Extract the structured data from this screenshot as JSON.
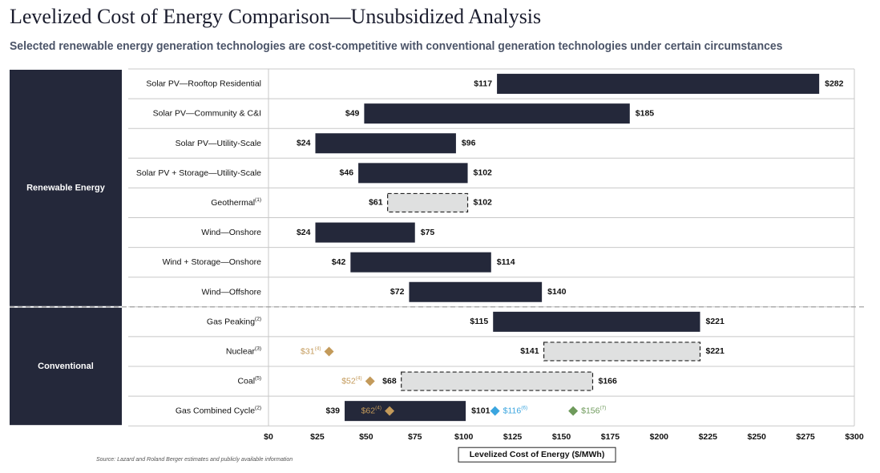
{
  "title": "Levelized Cost of Energy Comparison—Unsubsidized Analysis",
  "subtitle": "Selected renewable energy generation technologies are cost-competitive with conventional generation technologies under certain circumstances",
  "source_note": "Source:    Lazard and Roland Berger estimates and publicly available information",
  "colors": {
    "bar_dark": "#24283a",
    "bar_light": "#dfe0e0",
    "nuclear_coal_marker": "#c39a5a",
    "blue_marker": "#3aa5df",
    "green_marker": "#6e9a5b",
    "group_bg": "#24283a"
  },
  "chart_data": {
    "type": "bar",
    "orientation": "horizontal-range",
    "xlabel": "Levelized Cost of Energy ($/MWh)",
    "xlim": [
      0,
      300
    ],
    "xticks": [
      0,
      25,
      50,
      75,
      100,
      125,
      150,
      175,
      200,
      225,
      250,
      275,
      300
    ],
    "xtick_labels": [
      "$0",
      "$25",
      "$50",
      "$75",
      "$100",
      "$125",
      "$150",
      "$175",
      "$200",
      "$225",
      "$250",
      "$275",
      "$300"
    ],
    "groups": [
      {
        "name": "Renewable Energy",
        "rows": 8
      },
      {
        "name": "Conventional",
        "rows": 4
      }
    ],
    "rows": [
      {
        "label": "Solar PV—Rooftop Residential",
        "sup": "",
        "low": 117,
        "high": 282,
        "low_label": "$117",
        "high_label": "$282",
        "style": "solid",
        "markers": []
      },
      {
        "label": "Solar PV—Community & C&I",
        "sup": "",
        "low": 49,
        "high": 185,
        "low_label": "$49",
        "high_label": "$185",
        "style": "solid",
        "markers": []
      },
      {
        "label": "Solar PV—Utility-Scale",
        "sup": "",
        "low": 24,
        "high": 96,
        "low_label": "$24",
        "high_label": "$96",
        "style": "solid",
        "markers": []
      },
      {
        "label": "Solar PV + Storage—Utility-Scale",
        "sup": "",
        "low": 46,
        "high": 102,
        "low_label": "$46",
        "high_label": "$102",
        "style": "solid",
        "markers": []
      },
      {
        "label": "Geothermal",
        "sup": "(1)",
        "low": 61,
        "high": 102,
        "low_label": "$61",
        "high_label": "$102",
        "style": "dashed",
        "markers": []
      },
      {
        "label": "Wind—Onshore",
        "sup": "",
        "low": 24,
        "high": 75,
        "low_label": "$24",
        "high_label": "$75",
        "style": "solid",
        "markers": []
      },
      {
        "label": "Wind + Storage—Onshore",
        "sup": "",
        "low": 42,
        "high": 114,
        "low_label": "$42",
        "high_label": "$114",
        "style": "solid",
        "markers": []
      },
      {
        "label": "Wind—Offshore",
        "sup": "",
        "low": 72,
        "high": 140,
        "low_label": "$72",
        "high_label": "$140",
        "style": "solid",
        "markers": []
      },
      {
        "label": "Gas Peaking",
        "sup": "(2)",
        "low": 115,
        "high": 221,
        "low_label": "$115",
        "high_label": "$221",
        "style": "solid",
        "markers": []
      },
      {
        "label": "Nuclear",
        "sup": "(3)",
        "low": 141,
        "high": 221,
        "low_label": "$141",
        "high_label": "$221",
        "style": "dashed",
        "markers": [
          {
            "value": 31,
            "label": "$31",
            "sup": "(4)",
            "color": "#c39a5a",
            "label_side": "left"
          }
        ]
      },
      {
        "label": "Coal",
        "sup": "(5)",
        "low": 68,
        "high": 166,
        "low_label": "$68",
        "high_label": "$166",
        "style": "dashed",
        "markers": [
          {
            "value": 52,
            "label": "$52",
            "sup": "(4)",
            "color": "#c39a5a",
            "label_side": "left"
          }
        ]
      },
      {
        "label": "Gas Combined Cycle",
        "sup": "(2)",
        "low": 39,
        "high": 101,
        "low_label": "$39",
        "high_label": "$101",
        "style": "solid",
        "markers": [
          {
            "value": 62,
            "label": "$62",
            "sup": "(4)",
            "color": "#c39a5a",
            "label_side": "left"
          },
          {
            "value": 116,
            "label": "$116",
            "sup": "(6)",
            "color": "#3aa5df",
            "label_side": "right"
          },
          {
            "value": 156,
            "label": "$156",
            "sup": "(7)",
            "color": "#6e9a5b",
            "label_side": "right"
          }
        ]
      }
    ]
  }
}
